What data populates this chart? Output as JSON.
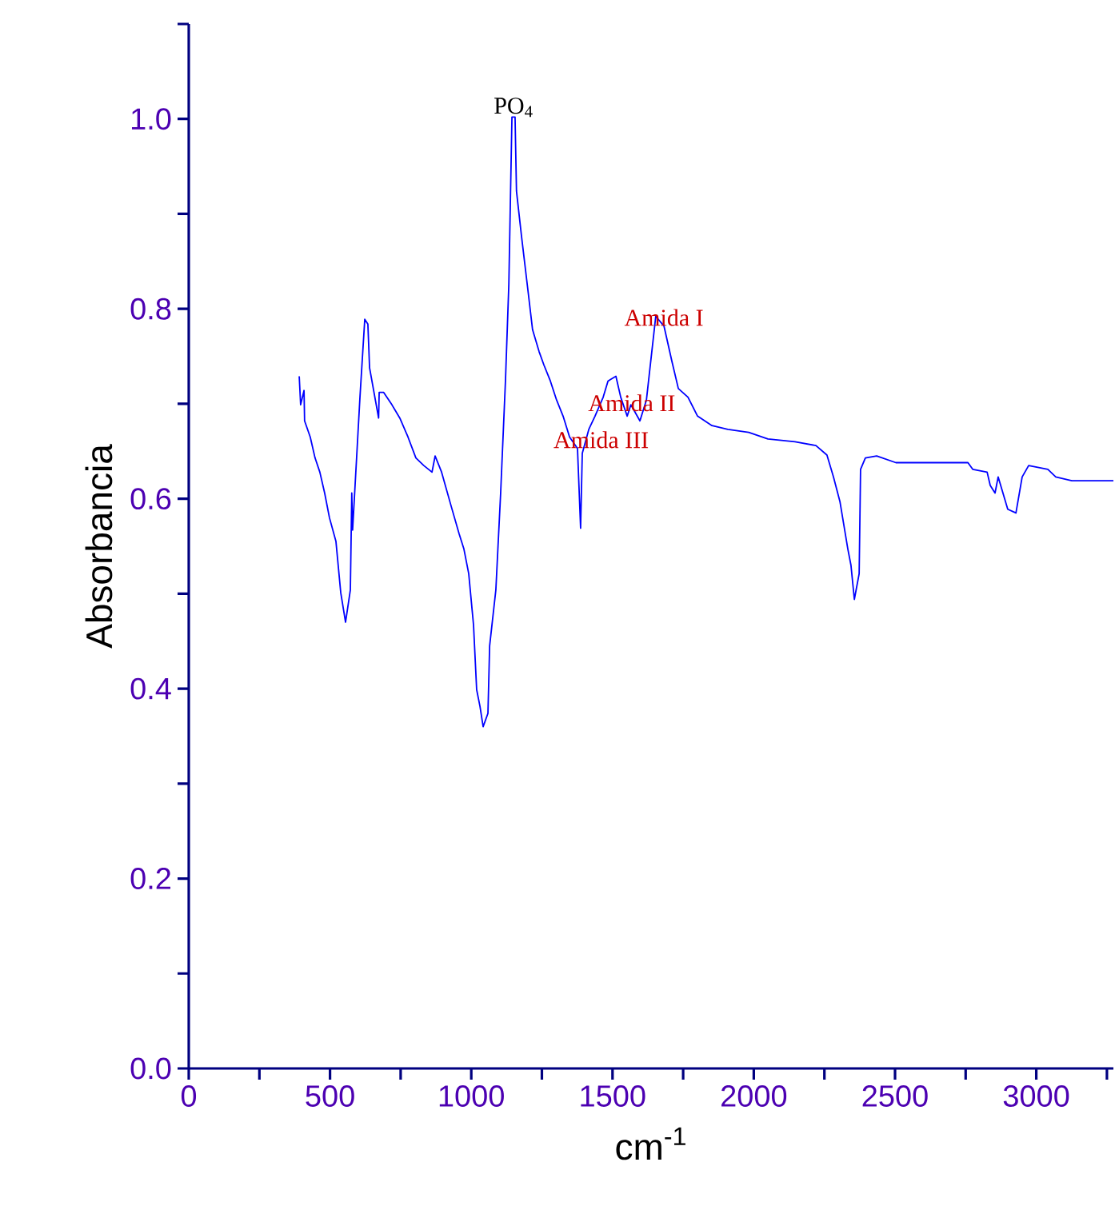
{
  "chart_data": {
    "type": "line",
    "xlabel": "cm$^{-1}$",
    "ylabel": "Absorbancia",
    "x": [
      391,
      396,
      408,
      410,
      430,
      447,
      464,
      481,
      498,
      521,
      538,
      555,
      572,
      577,
      580,
      606,
      623,
      634,
      640,
      672,
      674,
      690,
      719,
      747,
      776,
      804,
      832,
      861,
      872,
      895,
      929,
      957,
      974,
      991,
      1008,
      1019,
      1031,
      1042,
      1059,
      1065,
      1087,
      1104,
      1121,
      1133,
      1144,
      1155,
      1160,
      1178,
      1200,
      1217,
      1240,
      1257,
      1280,
      1302,
      1325,
      1348,
      1376,
      1387,
      1393,
      1416,
      1438,
      1467,
      1484,
      1512,
      1529,
      1552,
      1565,
      1597,
      1620,
      1653,
      1682,
      1710,
      1733,
      1767,
      1801,
      1852,
      1908,
      1982,
      2050,
      2146,
      2220,
      2259,
      2282,
      2305,
      2333,
      2344,
      2356,
      2373,
      2378,
      2395,
      2435,
      2503,
      2758,
      2775,
      2826,
      2837,
      2854,
      2865,
      2899,
      2928,
      2950,
      2973,
      3041,
      3069,
      3126,
      3273
    ],
    "series": [
      {
        "color": "#0000ff",
        "values": [
          0.729,
          0.699,
          0.714,
          0.682,
          0.665,
          0.643,
          0.628,
          0.606,
          0.58,
          0.555,
          0.501,
          0.47,
          0.504,
          0.606,
          0.567,
          0.707,
          0.789,
          0.784,
          0.738,
          0.685,
          0.712,
          0.712,
          0.699,
          0.685,
          0.665,
          0.643,
          0.635,
          0.628,
          0.645,
          0.628,
          0.592,
          0.563,
          0.547,
          0.521,
          0.467,
          0.399,
          0.381,
          0.36,
          0.374,
          0.445,
          0.504,
          0.606,
          0.724,
          0.826,
          1.002,
          1.002,
          0.924,
          0.876,
          0.821,
          0.778,
          0.755,
          0.741,
          0.724,
          0.704,
          0.687,
          0.665,
          0.653,
          0.569,
          0.648,
          0.673,
          0.687,
          0.707,
          0.724,
          0.729,
          0.707,
          0.687,
          0.699,
          0.682,
          0.704,
          0.792,
          0.782,
          0.745,
          0.716,
          0.707,
          0.687,
          0.677,
          0.673,
          0.67,
          0.663,
          0.66,
          0.656,
          0.646,
          0.623,
          0.597,
          0.547,
          0.53,
          0.494,
          0.521,
          0.631,
          0.643,
          0.645,
          0.638,
          0.638,
          0.631,
          0.628,
          0.614,
          0.606,
          0.623,
          0.589,
          0.585,
          0.623,
          0.635,
          0.631,
          0.623,
          0.619,
          0.619
        ]
      }
    ],
    "xlim": [
      0,
      3273
    ],
    "ylim": [
      0,
      1.1
    ],
    "xticks": [
      0,
      {
        "value": 250,
        "label": null
      },
      500,
      {
        "value": 750,
        "label": null
      },
      1000,
      {
        "value": 1250,
        "label": null
      },
      1500,
      {
        "value": 1750,
        "label": null
      },
      2000,
      {
        "value": 2250,
        "label": null
      },
      2500,
      {
        "value": 2750,
        "label": null
      },
      3000,
      {
        "value": 3250,
        "label": null
      }
    ],
    "yticks": [
      {
        "value": 0,
        "label": "0.0"
      },
      {
        "value": 0.1,
        "label": null
      },
      {
        "value": 0.2,
        "label": "0.2"
      },
      {
        "value": 0.3,
        "label": null
      },
      {
        "value": 0.4,
        "label": "0.4"
      },
      {
        "value": 0.5,
        "label": null
      },
      {
        "value": 0.6,
        "label": "0.6"
      },
      {
        "value": 0.7,
        "label": null
      },
      {
        "value": 0.8,
        "label": "0.8"
      },
      {
        "value": 0.9,
        "label": null
      },
      {
        "value": 1.0,
        "label": "1.0"
      },
      {
        "value": 1.1,
        "label": null
      }
    ],
    "annotations": [
      {
        "text": "PO$_{4}$",
        "x": 1150,
        "y": 1.0
      },
      {
        "text": "Amida I",
        "x": 1682,
        "y": 0.78
      },
      {
        "text": "Amida II",
        "x": 1568,
        "y": 0.69
      },
      "Amida III"
    ],
    "grid": false,
    "marker": "none",
    "line_style": "solid"
  }
}
